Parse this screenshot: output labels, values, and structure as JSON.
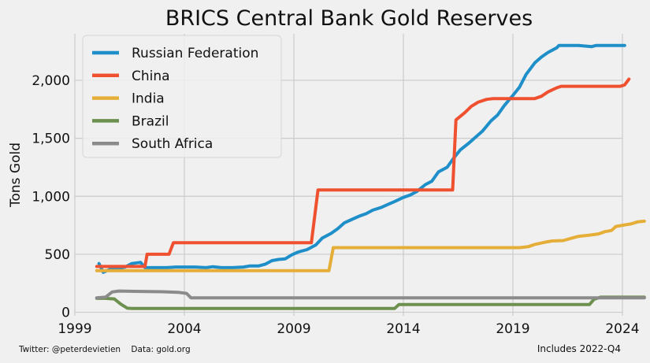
{
  "chart_data": {
    "type": "line",
    "title": "BRICS Central Bank Gold Reserves",
    "xlabel": "",
    "ylabel": "Tons Gold",
    "xlim": [
      1999,
      2024
    ],
    "ylim": [
      -30,
      2400
    ],
    "grid": true,
    "legend_position": "top-left",
    "x_ticks": [
      {
        "value": 1999,
        "label": "1999"
      },
      {
        "value": 2004,
        "label": "2004"
      },
      {
        "value": 2009,
        "label": "2009"
      },
      {
        "value": 2014,
        "label": "2014"
      },
      {
        "value": 2019,
        "label": "2019"
      },
      {
        "value": 2024,
        "label": "2024"
      }
    ],
    "y_ticks": [
      {
        "value": 0,
        "label": "0"
      },
      {
        "value": 500,
        "label": "500"
      },
      {
        "value": 1000,
        "label": "1,000"
      },
      {
        "value": 1500,
        "label": "1,500"
      },
      {
        "value": 2000,
        "label": "2,000"
      }
    ],
    "series": [
      {
        "name": "Russian Federation",
        "color": "#1f8fc9",
        "points": [
          [
            2000.1,
            420
          ],
          [
            2000.3,
            345
          ],
          [
            2000.6,
            370
          ],
          [
            2001,
            380
          ],
          [
            2001.3,
            390
          ],
          [
            2001.6,
            420
          ],
          [
            2002,
            430
          ],
          [
            2002.2,
            385
          ],
          [
            2002.7,
            385
          ],
          [
            2003.2,
            385
          ],
          [
            2003.6,
            390
          ],
          [
            2004,
            390
          ],
          [
            2004.5,
            390
          ],
          [
            2005,
            385
          ],
          [
            2005.3,
            393
          ],
          [
            2005.7,
            385
          ],
          [
            2006.2,
            385
          ],
          [
            2006.7,
            390
          ],
          [
            2007,
            400
          ],
          [
            2007.4,
            400
          ],
          [
            2007.7,
            415
          ],
          [
            2008,
            445
          ],
          [
            2008.3,
            455
          ],
          [
            2008.6,
            460
          ],
          [
            2008.9,
            495
          ],
          [
            2009.2,
            520
          ],
          [
            2009.6,
            540
          ],
          [
            2010,
            580
          ],
          [
            2010.3,
            640
          ],
          [
            2010.7,
            680
          ],
          [
            2011,
            720
          ],
          [
            2011.3,
            770
          ],
          [
            2011.7,
            805
          ],
          [
            2012,
            830
          ],
          [
            2012.3,
            850
          ],
          [
            2012.6,
            880
          ],
          [
            2013,
            905
          ],
          [
            2013.3,
            930
          ],
          [
            2013.6,
            955
          ],
          [
            2014,
            990
          ],
          [
            2014.3,
            1010
          ],
          [
            2014.6,
            1040
          ],
          [
            2015,
            1100
          ],
          [
            2015.3,
            1130
          ],
          [
            2015.6,
            1210
          ],
          [
            2016,
            1250
          ],
          [
            2016.3,
            1330
          ],
          [
            2016.6,
            1400
          ],
          [
            2017,
            1460
          ],
          [
            2017.3,
            1510
          ],
          [
            2017.6,
            1560
          ],
          [
            2018,
            1650
          ],
          [
            2018.3,
            1700
          ],
          [
            2018.6,
            1780
          ],
          [
            2019,
            1870
          ],
          [
            2019.3,
            1940
          ],
          [
            2019.6,
            2050
          ],
          [
            2020,
            2150
          ],
          [
            2020.3,
            2200
          ],
          [
            2020.6,
            2240
          ],
          [
            2021,
            2280
          ],
          [
            2021.1,
            2300
          ],
          [
            2021.5,
            2300
          ],
          [
            2022,
            2300
          ],
          [
            2022.3,
            2295
          ],
          [
            2022.6,
            2290
          ],
          [
            2022.8,
            2300
          ],
          [
            2023.3,
            2300
          ],
          [
            2023.6,
            2300
          ],
          [
            2024.1,
            2300
          ]
        ]
      },
      {
        "name": "China",
        "color": "#ef5130",
        "points": [
          [
            2000,
            395
          ],
          [
            2001.3,
            395
          ],
          [
            2001.8,
            395
          ],
          [
            2002.2,
            395
          ],
          [
            2002.3,
            500
          ],
          [
            2002.9,
            500
          ],
          [
            2003.3,
            500
          ],
          [
            2003.5,
            600
          ],
          [
            2004,
            600
          ],
          [
            2006,
            600
          ],
          [
            2008,
            600
          ],
          [
            2009.8,
            600
          ],
          [
            2010.1,
            1054
          ],
          [
            2012,
            1054
          ],
          [
            2014,
            1054
          ],
          [
            2016,
            1054
          ],
          [
            2016.25,
            1054
          ],
          [
            2016.4,
            1658
          ],
          [
            2016.8,
            1720
          ],
          [
            2017.1,
            1775
          ],
          [
            2017.4,
            1810
          ],
          [
            2017.8,
            1835
          ],
          [
            2018.1,
            1842
          ],
          [
            2019,
            1842
          ],
          [
            2020,
            1842
          ],
          [
            2020.3,
            1862
          ],
          [
            2020.6,
            1900
          ],
          [
            2021,
            1935
          ],
          [
            2021.2,
            1948
          ],
          [
            2022,
            1948
          ],
          [
            2023,
            1948
          ],
          [
            2023.9,
            1948
          ],
          [
            2024.1,
            1960
          ],
          [
            2024.3,
            2010
          ]
        ]
      },
      {
        "name": "India",
        "color": "#e5ae38",
        "points": [
          [
            2000,
            358
          ],
          [
            2002,
            358
          ],
          [
            2004,
            358
          ],
          [
            2006,
            358
          ],
          [
            2008,
            358
          ],
          [
            2010,
            358
          ],
          [
            2010.6,
            358
          ],
          [
            2010.8,
            557
          ],
          [
            2012,
            557
          ],
          [
            2014,
            557
          ],
          [
            2016,
            557
          ],
          [
            2018,
            557
          ],
          [
            2019.3,
            557
          ],
          [
            2019.7,
            565
          ],
          [
            2020,
            585
          ],
          [
            2020.5,
            605
          ],
          [
            2020.8,
            615
          ],
          [
            2021.3,
            618
          ],
          [
            2021.7,
            640
          ],
          [
            2022,
            655
          ],
          [
            2022.5,
            665
          ],
          [
            2022.9,
            675
          ],
          [
            2023.2,
            695
          ],
          [
            2023.5,
            705
          ],
          [
            2023.7,
            740
          ],
          [
            2024,
            750
          ],
          [
            2024.4,
            762
          ],
          [
            2024.7,
            780
          ],
          [
            2025,
            785
          ]
        ]
      },
      {
        "name": "Brazil",
        "color": "#6d904f",
        "points": [
          [
            2000,
            120
          ],
          [
            2000.4,
            120
          ],
          [
            2000.8,
            115
          ],
          [
            2001.1,
            70
          ],
          [
            2001.4,
            35
          ],
          [
            2001.6,
            33
          ],
          [
            2002.5,
            33
          ],
          [
            2004,
            33
          ],
          [
            2006,
            33
          ],
          [
            2008,
            33
          ],
          [
            2010,
            33
          ],
          [
            2012,
            33
          ],
          [
            2013.3,
            33
          ],
          [
            2013.6,
            33
          ],
          [
            2013.8,
            67
          ],
          [
            2015,
            67
          ],
          [
            2017,
            67
          ],
          [
            2019,
            67
          ],
          [
            2021,
            67
          ],
          [
            2022.3,
            67
          ],
          [
            2022.5,
            67
          ],
          [
            2022.7,
            112
          ],
          [
            2023,
            130
          ],
          [
            2023.5,
            130
          ],
          [
            2024,
            130
          ],
          [
            2025,
            130
          ]
        ]
      },
      {
        "name": "South Africa",
        "color": "#8b8b8b",
        "points": [
          [
            2000,
            125
          ],
          [
            2000.4,
            130
          ],
          [
            2000.7,
            175
          ],
          [
            2001,
            183
          ],
          [
            2002,
            180
          ],
          [
            2003,
            177
          ],
          [
            2003.7,
            172
          ],
          [
            2004.1,
            163
          ],
          [
            2004.3,
            125
          ],
          [
            2006,
            125
          ],
          [
            2008,
            125
          ],
          [
            2010,
            125
          ],
          [
            2012,
            125
          ],
          [
            2014,
            125
          ],
          [
            2016,
            125
          ],
          [
            2018,
            125
          ],
          [
            2020,
            125
          ],
          [
            2022,
            125
          ],
          [
            2024,
            125
          ],
          [
            2025,
            125
          ]
        ]
      }
    ]
  },
  "footer": {
    "left_text": "Twitter: @peterdevietien    Data: gold.org",
    "right_text": "Includes 2022-Q4"
  }
}
